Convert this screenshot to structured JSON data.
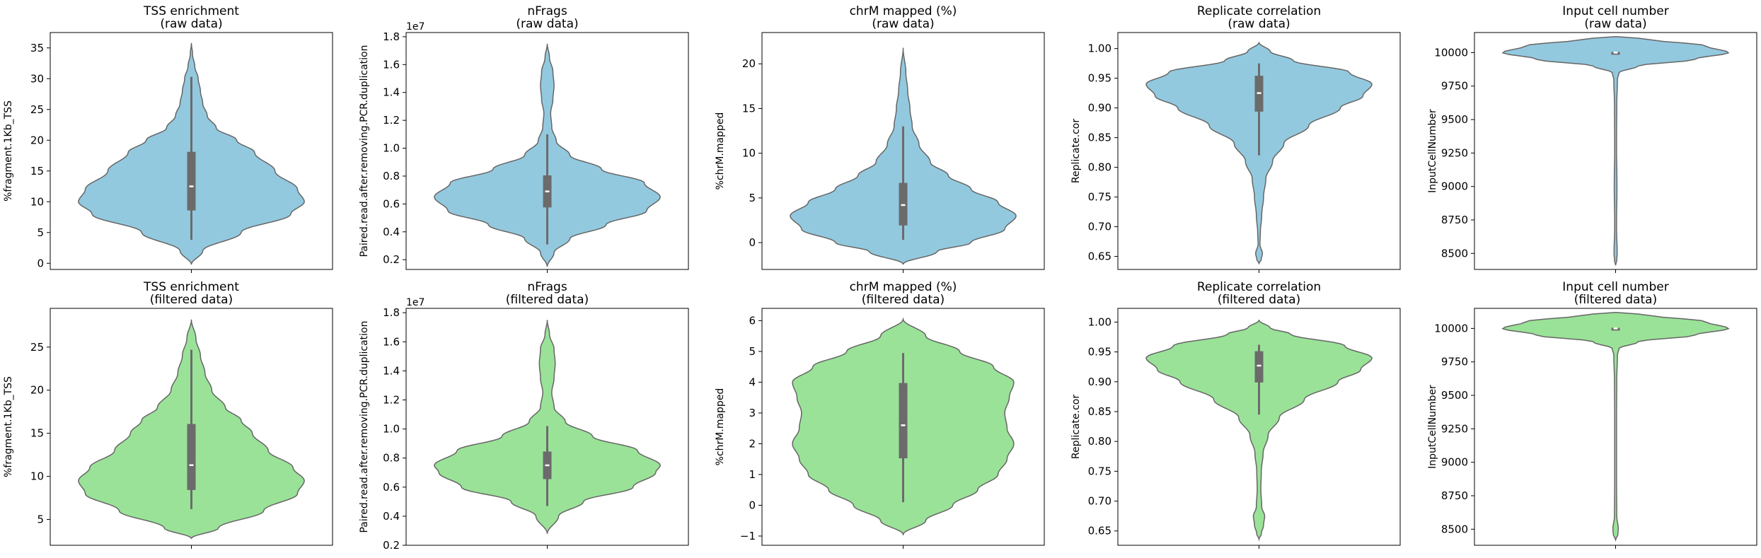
{
  "colors": {
    "raw": "#93c9df",
    "filtered": "#9ae298",
    "edge": "#666666",
    "box": "#6b6b6b",
    "median": "#ffffff"
  },
  "chart_data": [
    {
      "type": "violin",
      "row": "raw",
      "title_line1": "TSS enrichment",
      "title_line2": "(raw data)",
      "ylabel": "%fragment.1Kb_TSS",
      "ylim": [
        -1,
        37.5
      ],
      "ticks": [
        0,
        5,
        10,
        15,
        20,
        25,
        30,
        35
      ],
      "tick_labels": [
        "0",
        "5",
        "10",
        "15",
        "20",
        "25",
        "30",
        "35"
      ],
      "offset_label": "",
      "profile": [
        [
          -0.2,
          0
        ],
        [
          2,
          0.05
        ],
        [
          5,
          0.22
        ],
        [
          8,
          0.44
        ],
        [
          10,
          0.5
        ],
        [
          12,
          0.47
        ],
        [
          15,
          0.37
        ],
        [
          18,
          0.28
        ],
        [
          20,
          0.2
        ],
        [
          22,
          0.11
        ],
        [
          24,
          0.07
        ],
        [
          26,
          0.05
        ],
        [
          28,
          0.04
        ],
        [
          30,
          0.03
        ],
        [
          32,
          0.015
        ],
        [
          34,
          0.005
        ],
        [
          35.8,
          0
        ]
      ],
      "box": {
        "whisker_low": 3.8,
        "q1": 8.7,
        "median": 12.5,
        "q3": 18,
        "whisker_high": 30.3
      }
    },
    {
      "type": "violin",
      "row": "raw",
      "title_line1": "nFrags",
      "title_line2": "(raw data)",
      "ylabel": "Paired.read.after.removing.PCR.duplication",
      "ylim": [
        1300000,
        18300000
      ],
      "ticks": [
        2000000,
        4000000,
        6000000,
        8000000,
        10000000,
        12000000,
        14000000,
        16000000,
        18000000
      ],
      "tick_labels": [
        "0.2",
        "0.4",
        "0.6",
        "0.8",
        "1.0",
        "1.2",
        "1.4",
        "1.6",
        "1.8"
      ],
      "offset_label": "1e7",
      "profile": [
        [
          1500000,
          0
        ],
        [
          2500000,
          0.03
        ],
        [
          3500000,
          0.1
        ],
        [
          4500000,
          0.26
        ],
        [
          5500000,
          0.44
        ],
        [
          6500000,
          0.5
        ],
        [
          7500000,
          0.43
        ],
        [
          8500000,
          0.24
        ],
        [
          9500000,
          0.1
        ],
        [
          10500000,
          0.04
        ],
        [
          11500000,
          0.02
        ],
        [
          12500000,
          0.015
        ],
        [
          13500000,
          0.025
        ],
        [
          14500000,
          0.03
        ],
        [
          15500000,
          0.025
        ],
        [
          16500000,
          0.01
        ],
        [
          17500000,
          0
        ]
      ],
      "box": {
        "whisker_low": 3100000,
        "q1": 5800000,
        "median": 6900000,
        "q3": 8000000,
        "whisker_high": 11000000
      }
    },
    {
      "type": "violin",
      "row": "raw",
      "title_line1": "chrM mapped (%)",
      "title_line2": "(raw data)",
      "ylabel": "%chrM.mapped",
      "ylim": [
        -3,
        23.5
      ],
      "ticks": [
        0,
        5,
        10,
        15,
        20
      ],
      "tick_labels": [
        "0",
        "5",
        "10",
        "15",
        "20"
      ],
      "offset_label": "",
      "profile": [
        [
          -2.4,
          0
        ],
        [
          -1,
          0.15
        ],
        [
          0,
          0.3
        ],
        [
          1.5,
          0.45
        ],
        [
          3,
          0.5
        ],
        [
          4.5,
          0.42
        ],
        [
          6,
          0.3
        ],
        [
          7.5,
          0.2
        ],
        [
          9,
          0.12
        ],
        [
          11,
          0.07
        ],
        [
          13,
          0.04
        ],
        [
          15,
          0.03
        ],
        [
          17,
          0.02
        ],
        [
          19,
          0.012
        ],
        [
          21.8,
          0
        ]
      ],
      "box": {
        "whisker_low": 0.3,
        "q1": 2,
        "median": 4.2,
        "q3": 6.6,
        "whisker_high": 13
      }
    },
    {
      "type": "violin",
      "row": "raw",
      "title_line1": "Replicate correlation",
      "title_line2": "(raw data)",
      "ylabel": "Replicate.cor",
      "ylim": [
        0.628,
        1.027
      ],
      "ticks": [
        0.65,
        0.7,
        0.75,
        0.8,
        0.85,
        0.9,
        0.95,
        1.0
      ],
      "tick_labels": [
        "0.65",
        "0.70",
        "0.75",
        "0.80",
        "0.85",
        "0.90",
        "0.95",
        "1.00"
      ],
      "offset_label": "",
      "profile": [
        [
          0.638,
          0
        ],
        [
          0.645,
          0.01
        ],
        [
          0.655,
          0.015
        ],
        [
          0.67,
          0.004
        ],
        [
          0.69,
          0.006
        ],
        [
          0.72,
          0.012
        ],
        [
          0.75,
          0.02
        ],
        [
          0.78,
          0.03
        ],
        [
          0.81,
          0.06
        ],
        [
          0.84,
          0.11
        ],
        [
          0.87,
          0.22
        ],
        [
          0.9,
          0.36
        ],
        [
          0.92,
          0.46
        ],
        [
          0.94,
          0.5
        ],
        [
          0.96,
          0.4
        ],
        [
          0.98,
          0.15
        ],
        [
          0.995,
          0.05
        ],
        [
          1.01,
          0
        ]
      ],
      "box": {
        "whisker_low": 0.82,
        "q1": 0.895,
        "median": 0.925,
        "q3": 0.953,
        "whisker_high": 0.975
      }
    },
    {
      "type": "violin",
      "row": "raw",
      "title_line1": "Input cell number",
      "title_line2": "(raw data)",
      "ylabel": "InputCellNumber",
      "ylim": [
        8380,
        10150
      ],
      "ticks": [
        8500,
        8750,
        9000,
        9250,
        9500,
        9750,
        10000
      ],
      "tick_labels": [
        "8500",
        "8750",
        "9000",
        "9250",
        "9500",
        "9750",
        "10000"
      ],
      "offset_label": "",
      "profile": [
        [
          8410,
          0
        ],
        [
          8450,
          0.005
        ],
        [
          8500,
          0.007
        ],
        [
          8700,
          0.004
        ],
        [
          9000,
          0.006
        ],
        [
          9300,
          0.004
        ],
        [
          9600,
          0.005
        ],
        [
          9800,
          0.008
        ],
        [
          9850,
          0.015
        ],
        [
          9900,
          0.1
        ],
        [
          9950,
          0.35
        ],
        [
          10000,
          0.5
        ],
        [
          10050,
          0.4
        ],
        [
          10100,
          0.15
        ],
        [
          10120,
          0
        ]
      ],
      "box": {
        "whisker_low": 10000,
        "q1": 10000,
        "median": 10000,
        "q3": 10000,
        "whisker_high": 10000
      }
    },
    {
      "type": "violin",
      "row": "filtered",
      "title_line1": "TSS enrichment",
      "title_line2": "(filtered data)",
      "ylabel": "%fragment.1Kb_TSS",
      "ylim": [
        2,
        29.5
      ],
      "ticks": [
        5,
        10,
        15,
        20,
        25
      ],
      "tick_labels": [
        "5",
        "10",
        "15",
        "20",
        "25"
      ],
      "offset_label": "",
      "profile": [
        [
          2.8,
          0
        ],
        [
          4,
          0.12
        ],
        [
          6,
          0.32
        ],
        [
          8,
          0.47
        ],
        [
          9.5,
          0.5
        ],
        [
          11,
          0.45
        ],
        [
          13,
          0.34
        ],
        [
          15,
          0.27
        ],
        [
          16.5,
          0.22
        ],
        [
          18,
          0.15
        ],
        [
          20,
          0.09
        ],
        [
          22,
          0.06
        ],
        [
          24,
          0.04
        ],
        [
          26,
          0.02
        ],
        [
          28.2,
          0
        ]
      ],
      "box": {
        "whisker_low": 6.2,
        "q1": 8.5,
        "median": 11.3,
        "q3": 16,
        "whisker_high": 24.7
      }
    },
    {
      "type": "violin",
      "row": "filtered",
      "title_line1": "nFrags",
      "title_line2": "(filtered data)",
      "ylabel": "Paired.read.after.removing.PCR.duplication",
      "ylim": [
        2000000,
        18300000
      ],
      "ticks": [
        2000000,
        4000000,
        6000000,
        8000000,
        10000000,
        12000000,
        14000000,
        16000000,
        18000000
      ],
      "tick_labels": [
        "0.2",
        "0.4",
        "0.6",
        "0.8",
        "1.0",
        "1.2",
        "1.4",
        "1.6",
        "1.8"
      ],
      "offset_label": "1e7",
      "profile": [
        [
          2800000,
          0
        ],
        [
          4000000,
          0.05
        ],
        [
          5000000,
          0.16
        ],
        [
          6000000,
          0.38
        ],
        [
          7000000,
          0.48
        ],
        [
          7500000,
          0.5
        ],
        [
          8500000,
          0.4
        ],
        [
          9500000,
          0.2
        ],
        [
          10500000,
          0.08
        ],
        [
          11500000,
          0.03
        ],
        [
          12500000,
          0.02
        ],
        [
          13500000,
          0.03
        ],
        [
          14500000,
          0.035
        ],
        [
          15500000,
          0.03
        ],
        [
          16500000,
          0.01
        ],
        [
          17500000,
          0
        ]
      ],
      "box": {
        "whisker_low": 4700000,
        "q1": 6600000,
        "median": 7500000,
        "q3": 8400000,
        "whisker_high": 10200000
      }
    },
    {
      "type": "violin",
      "row": "filtered",
      "title_line1": "chrM mapped (%)",
      "title_line2": "(filtered data)",
      "ylabel": "%chrM.mapped",
      "ylim": [
        -1.3,
        6.4
      ],
      "ticks": [
        -1,
        0,
        1,
        2,
        3,
        4,
        5,
        6
      ],
      "tick_labels": [
        "−1",
        "0",
        "1",
        "2",
        "3",
        "4",
        "5",
        "6"
      ],
      "offset_label": "",
      "profile": [
        [
          -0.95,
          0
        ],
        [
          -0.5,
          0.1
        ],
        [
          0,
          0.22
        ],
        [
          0.5,
          0.33
        ],
        [
          1,
          0.42
        ],
        [
          1.5,
          0.46
        ],
        [
          2,
          0.49
        ],
        [
          2.5,
          0.46
        ],
        [
          3,
          0.45
        ],
        [
          3.5,
          0.47
        ],
        [
          4,
          0.49
        ],
        [
          4.5,
          0.4
        ],
        [
          5,
          0.25
        ],
        [
          5.5,
          0.1
        ],
        [
          6.05,
          0
        ]
      ],
      "box": {
        "whisker_low": 0.1,
        "q1": 1.55,
        "median": 2.6,
        "q3": 3.95,
        "whisker_high": 4.95
      }
    },
    {
      "type": "violin",
      "row": "filtered",
      "title_line1": "Replicate correlation",
      "title_line2": "(filtered data)",
      "ylabel": "Replicate.cor",
      "ylim": [
        0.626,
        1.023
      ],
      "ticks": [
        0.65,
        0.7,
        0.75,
        0.8,
        0.85,
        0.9,
        0.95,
        1.0
      ],
      "tick_labels": [
        "0.65",
        "0.70",
        "0.75",
        "0.80",
        "0.85",
        "0.90",
        "0.95",
        "1.00"
      ],
      "offset_label": "",
      "profile": [
        [
          0.636,
          0
        ],
        [
          0.645,
          0.01
        ],
        [
          0.66,
          0.02
        ],
        [
          0.675,
          0.025
        ],
        [
          0.69,
          0.012
        ],
        [
          0.72,
          0.008
        ],
        [
          0.75,
          0.01
        ],
        [
          0.78,
          0.018
        ],
        [
          0.81,
          0.04
        ],
        [
          0.84,
          0.09
        ],
        [
          0.87,
          0.2
        ],
        [
          0.9,
          0.35
        ],
        [
          0.92,
          0.45
        ],
        [
          0.94,
          0.5
        ],
        [
          0.96,
          0.38
        ],
        [
          0.98,
          0.14
        ],
        [
          0.99,
          0.05
        ],
        [
          1.003,
          0
        ]
      ],
      "box": {
        "whisker_low": 0.845,
        "q1": 0.9,
        "median": 0.927,
        "q3": 0.95,
        "whisker_high": 0.962
      }
    },
    {
      "type": "violin",
      "row": "filtered",
      "title_line1": "Input cell number",
      "title_line2": "(filtered data)",
      "ylabel": "InputCellNumber",
      "ylim": [
        8380,
        10150
      ],
      "ticks": [
        8500,
        8750,
        9000,
        9250,
        9500,
        9750,
        10000
      ],
      "tick_labels": [
        "8500",
        "8750",
        "9000",
        "9250",
        "9500",
        "9750",
        "10000"
      ],
      "offset_label": "",
      "profile": [
        [
          8420,
          0
        ],
        [
          8460,
          0.01
        ],
        [
          8500,
          0.012
        ],
        [
          8600,
          0.005
        ],
        [
          8900,
          0.004
        ],
        [
          9300,
          0.004
        ],
        [
          9600,
          0.005
        ],
        [
          9800,
          0.008
        ],
        [
          9850,
          0.015
        ],
        [
          9900,
          0.1
        ],
        [
          9950,
          0.35
        ],
        [
          10000,
          0.5
        ],
        [
          10050,
          0.4
        ],
        [
          10100,
          0.15
        ],
        [
          10120,
          0
        ]
      ],
      "box": {
        "whisker_low": 10000,
        "q1": 10000,
        "median": 10000,
        "q3": 10000,
        "whisker_high": 10000
      }
    }
  ]
}
